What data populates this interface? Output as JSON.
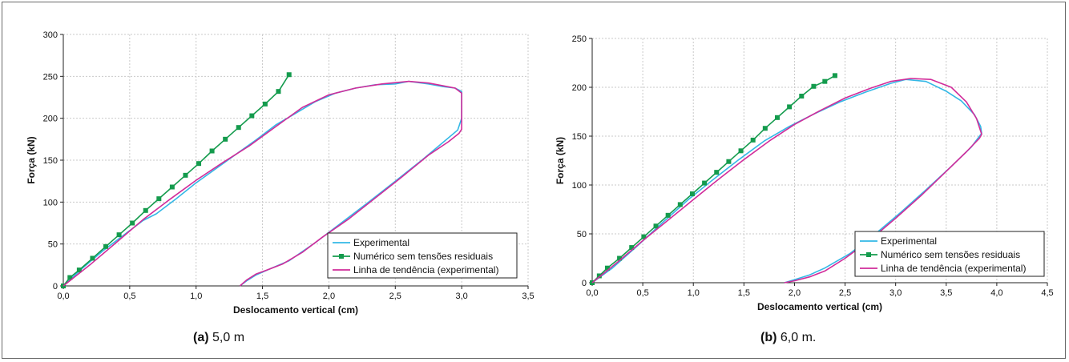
{
  "captions": [
    {
      "tag": "(a)",
      "text": "5,0 m"
    },
    {
      "tag": "(b)",
      "text": "6,0 m."
    }
  ],
  "chart_data": [
    {
      "type": "line",
      "xlabel": "Deslocamento vertical (cm)",
      "ylabel": "Força (kN)",
      "xlim": [
        0,
        3.5
      ],
      "ylim": [
        0,
        300
      ],
      "xticks": [
        "0,0",
        "0,5",
        "1,0",
        "1,5",
        "2,0",
        "2,5",
        "3,0",
        "3,5"
      ],
      "yticks": [
        "0",
        "50",
        "100",
        "150",
        "200",
        "250",
        "300"
      ],
      "grid": true,
      "legend": "bottom-right",
      "series": [
        {
          "name": "Experimental",
          "color": "#33b8e6",
          "marker": "none",
          "x": [
            0,
            0.15,
            0.3,
            0.45,
            0.6,
            0.7,
            0.85,
            1.0,
            1.15,
            1.3,
            1.45,
            1.6,
            1.75,
            1.9,
            2.05,
            2.2,
            2.35,
            2.5,
            2.6,
            2.75,
            2.85,
            2.95,
            3.0,
            3.0,
            2.97,
            2.85,
            2.7,
            2.5,
            2.3,
            2.1,
            1.9,
            1.7,
            1.55,
            1.45,
            1.38,
            1.33
          ],
          "y": [
            0,
            22,
            42,
            60,
            78,
            86,
            104,
            123,
            140,
            157,
            174,
            192,
            206,
            220,
            230,
            236,
            240,
            241,
            244,
            241,
            238,
            236,
            232,
            200,
            186,
            170,
            150,
            125,
            100,
            76,
            52,
            30,
            20,
            13,
            6,
            0
          ]
        },
        {
          "name": "Numérico sem tensões residuais",
          "color": "#149b4d",
          "marker": "square",
          "x": [
            0,
            0.05,
            0.12,
            0.22,
            0.32,
            0.42,
            0.52,
            0.62,
            0.72,
            0.82,
            0.92,
            1.02,
            1.12,
            1.22,
            1.32,
            1.42,
            1.52,
            1.62,
            1.7
          ],
          "y": [
            0,
            10,
            19,
            33,
            47,
            61,
            75,
            90,
            104,
            118,
            132,
            146,
            161,
            175,
            189,
            203,
            217,
            232,
            252
          ]
        },
        {
          "name": "Linha de tendência (experimental)",
          "color": "#d12c9a",
          "marker": "none",
          "x": [
            0,
            0.2,
            0.4,
            0.6,
            0.8,
            1.0,
            1.2,
            1.4,
            1.6,
            1.8,
            2.0,
            2.2,
            2.4,
            2.6,
            2.75,
            2.85,
            2.95,
            3.0,
            3.0,
            2.98,
            2.9,
            2.75,
            2.55,
            2.35,
            2.15,
            1.95,
            1.8,
            1.65,
            1.55,
            1.45,
            1.38,
            1.33
          ],
          "y": [
            0,
            25,
            52,
            79,
            103,
            126,
            147,
            167,
            190,
            213,
            228,
            236,
            241,
            244,
            242,
            239,
            236,
            230,
            187,
            182,
            172,
            156,
            130,
            105,
            80,
            58,
            40,
            26,
            20,
            14,
            7,
            0
          ]
        }
      ]
    },
    {
      "type": "line",
      "xlabel": "Deslocamento vertical (cm)",
      "ylabel": "Força (kN)",
      "xlim": [
        0,
        4.5
      ],
      "ylim": [
        0,
        250
      ],
      "xticks": [
        "0,0",
        "0,5",
        "1,0",
        "1,5",
        "2,0",
        "2,5",
        "3,0",
        "3,5",
        "4,0",
        "4,5"
      ],
      "yticks": [
        "0",
        "50",
        "100",
        "150",
        "200",
        "250"
      ],
      "grid": true,
      "legend": "bottom-right",
      "series": [
        {
          "name": "Experimental",
          "color": "#33b8e6",
          "marker": "none",
          "x": [
            0,
            0.2,
            0.45,
            0.7,
            0.95,
            1.2,
            1.45,
            1.7,
            1.95,
            2.2,
            2.45,
            2.7,
            2.95,
            3.1,
            3.3,
            3.5,
            3.65,
            3.78,
            3.84,
            3.85,
            3.75,
            3.55,
            3.3,
            3.05,
            2.8,
            2.55,
            2.3,
            2.15,
            2.0,
            1.9
          ],
          "y": [
            0,
            15,
            38,
            62,
            85,
            106,
            126,
            145,
            160,
            173,
            185,
            195,
            204,
            208,
            206,
            196,
            186,
            172,
            160,
            153,
            139,
            119,
            95,
            72,
            50,
            30,
            15,
            8,
            3,
            0
          ]
        },
        {
          "name": "Numérico sem tensões residuais",
          "color": "#149b4d",
          "marker": "square",
          "x": [
            0,
            0.07,
            0.15,
            0.27,
            0.39,
            0.51,
            0.63,
            0.75,
            0.87,
            0.99,
            1.11,
            1.23,
            1.35,
            1.47,
            1.59,
            1.71,
            1.83,
            1.95,
            2.07,
            2.19,
            2.3,
            2.4
          ],
          "y": [
            0,
            7,
            15,
            25,
            36,
            47,
            58,
            69,
            80,
            91,
            102,
            113,
            124,
            135,
            146,
            158,
            169,
            180,
            191,
            201,
            206,
            212
          ]
        },
        {
          "name": "Linha de tendência (experimental)",
          "color": "#d12c9a",
          "marker": "none",
          "x": [
            0,
            0.25,
            0.5,
            0.75,
            1.0,
            1.25,
            1.5,
            1.75,
            2.0,
            2.25,
            2.5,
            2.75,
            2.95,
            3.15,
            3.35,
            3.55,
            3.7,
            3.8,
            3.85,
            3.83,
            3.7,
            3.5,
            3.25,
            3.0,
            2.75,
            2.5,
            2.3,
            2.15,
            2.0,
            1.9
          ],
          "y": [
            0,
            21,
            43,
            64,
            85,
            106,
            126,
            145,
            162,
            176,
            189,
            199,
            206,
            209,
            208,
            200,
            185,
            168,
            152,
            148,
            134,
            114,
            89,
            66,
            44,
            25,
            12,
            6,
            2,
            0
          ]
        }
      ]
    }
  ]
}
